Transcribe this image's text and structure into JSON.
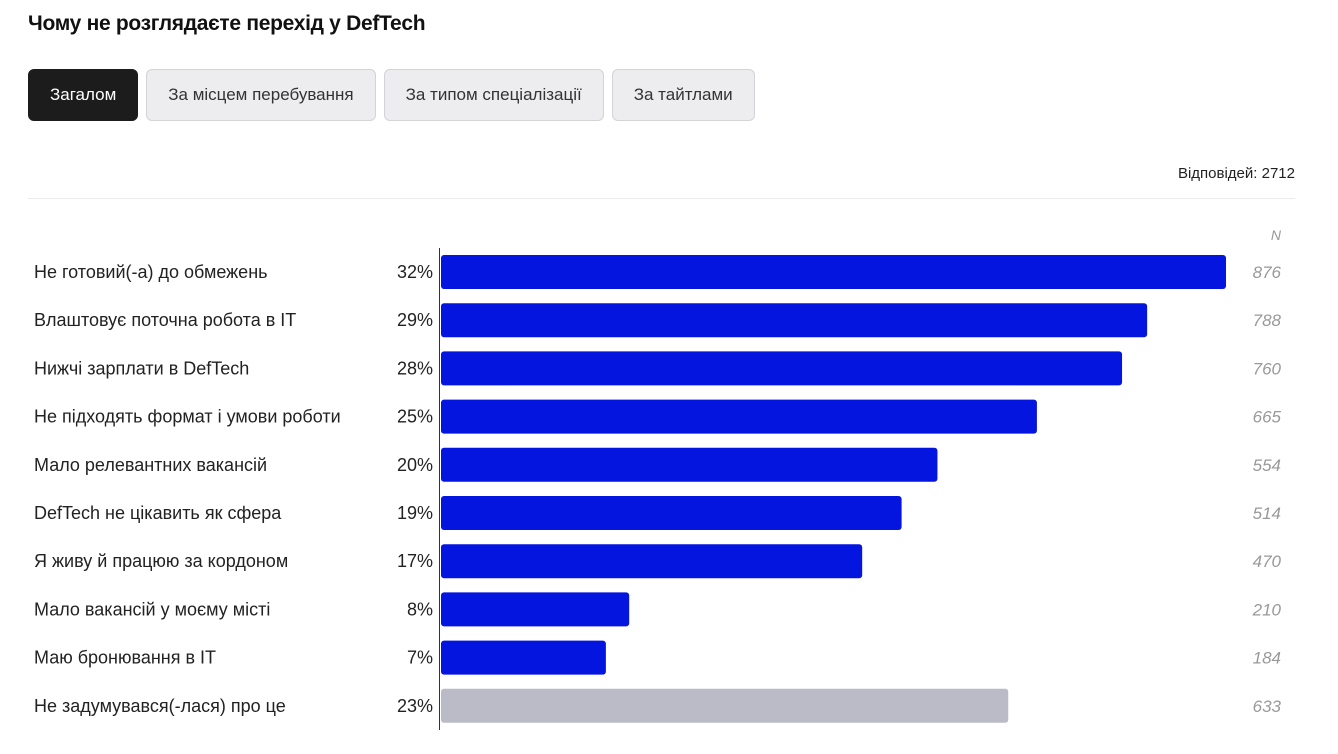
{
  "title": "Чому не розглядаєте перехід у DefTech",
  "tabs": [
    {
      "label": "Загалом",
      "active": true
    },
    {
      "label": "За місцем перебування",
      "active": false
    },
    {
      "label": "За типом спеціалізації",
      "active": false
    },
    {
      "label": "За тайтлами",
      "active": false
    }
  ],
  "responses_label": "Відповідей: 2712",
  "colors": {
    "primary": "#0515e0",
    "neutral": "#bbbbc8",
    "active_tab": "#1c1c1c"
  },
  "chart_data": {
    "type": "bar",
    "orientation": "horizontal",
    "n_header": "N",
    "categories": [
      "Не готовий(-а) до обмежень",
      "Влаштовує поточна робота в IT",
      "Нижчі зарплати в DefTech",
      "Не підходять формат і умови роботи",
      "Мало релевантних вакансій",
      "DefTech не цікавить як сфера",
      "Я живу й працюю за кордоном",
      "Мало вакансій у моєму місті",
      "Маю бронювання в IT",
      "Не задумувався(-лася) про це"
    ],
    "percent_labels": [
      "32%",
      "29%",
      "28%",
      "25%",
      "20%",
      "19%",
      "17%",
      "8%",
      "7%",
      "23%"
    ],
    "values": [
      876,
      788,
      760,
      665,
      554,
      514,
      470,
      210,
      184,
      633
    ],
    "highlight": [
      "primary",
      "primary",
      "primary",
      "primary",
      "primary",
      "primary",
      "primary",
      "primary",
      "primary",
      "neutral"
    ],
    "xlim": [
      0,
      876
    ]
  }
}
